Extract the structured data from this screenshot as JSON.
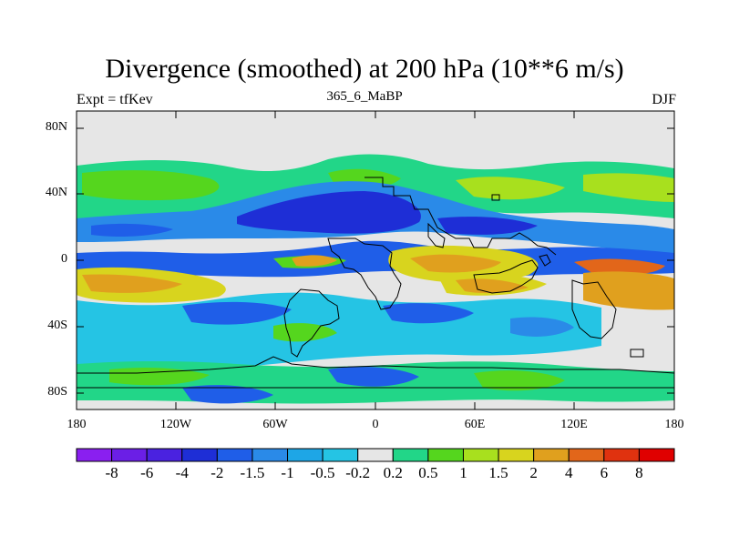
{
  "figure": {
    "title": "Divergence (smoothed) at 200 hPa (10**6 m/s)",
    "left_subtitle": "Expt = tfKev",
    "center_subtitle": "365_6_MaBP",
    "right_subtitle": "DJF"
  },
  "axes": {
    "y_ticks": [
      "80N",
      "40N",
      "0",
      "40S",
      "80S"
    ],
    "x_ticks": [
      "180",
      "120W",
      "60W",
      "0",
      "60E",
      "120E",
      "180"
    ]
  },
  "colorbar": {
    "labels": [
      "-8",
      "-6",
      "-4",
      "-2",
      "-1.5",
      "-1",
      "-0.5",
      "-0.2",
      "0.2",
      "0.5",
      "1",
      "1.5",
      "2",
      "4",
      "6",
      "8"
    ],
    "colors": [
      "#8a1ff0",
      "#6b1fe6",
      "#4a22e0",
      "#1e2ed6",
      "#1f5ee8",
      "#2a8ae8",
      "#1ea6e6",
      "#25c4e4",
      "#e6e6e6",
      "#22d688",
      "#55d61e",
      "#a8e01e",
      "#d8d41e",
      "#e0a01e",
      "#e2661a",
      "#e0320f",
      "#e00000"
    ]
  }
}
